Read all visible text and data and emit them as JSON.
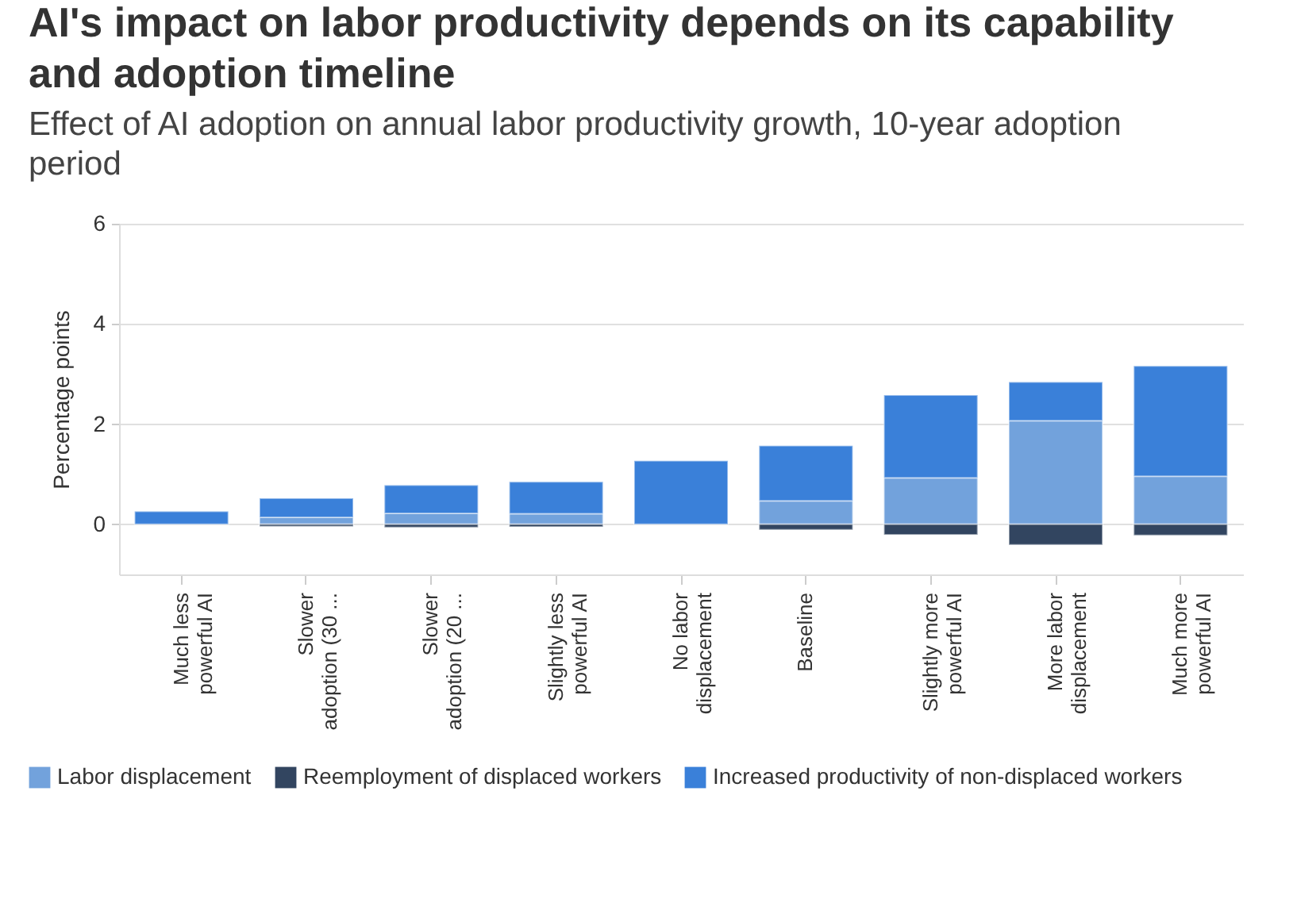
{
  "chart_data": {
    "type": "bar",
    "title": "AI's impact on labor productivity depends on its capability and adoption timeline",
    "subtitle": "Effect of AI adoption on annual labor productivity growth, 10-year adoption period",
    "ylabel": "Percentage points",
    "categories": [
      "Much less powerful AI",
      "Slower adoption (30 ...",
      "Slower adoption (20 ...",
      "Slightly less powerful AI",
      "No labor displacement",
      "Baseline",
      "Slightly more powerful AI",
      "More labor displacement",
      "Much more powerful AI"
    ],
    "series": [
      {
        "name": "Labor displacement",
        "color": "#72a2dc",
        "values": [
          null,
          0.14,
          0.22,
          0.21,
          null,
          0.47,
          0.93,
          2.07,
          0.96
        ]
      },
      {
        "name": "Reemployment of displaced workers",
        "color": "#324560",
        "values": [
          null,
          -0.04,
          -0.06,
          -0.05,
          null,
          -0.11,
          -0.21,
          -0.41,
          -0.22
        ]
      },
      {
        "name": "Increased productivity of non-displaced workers",
        "color": "#3a80d9",
        "values": [
          0.26,
          0.38,
          0.56,
          0.64,
          1.27,
          1.1,
          1.65,
          0.77,
          2.2
        ]
      }
    ],
    "stacked": true,
    "ylim": [
      -1,
      6
    ],
    "yticks": [
      0,
      2,
      4,
      6
    ],
    "grid": "y",
    "legend": "bottom"
  }
}
